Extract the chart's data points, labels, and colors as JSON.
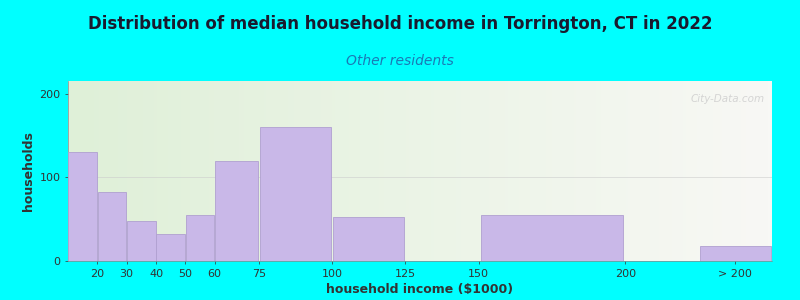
{
  "title": "Distribution of median household income in Torrington, CT in 2022",
  "subtitle": "Other residents",
  "xlabel": "household income ($1000)",
  "ylabel": "households",
  "background_color": "#00FFFF",
  "plot_bg_gradient_left": "#dff0d8",
  "plot_bg_gradient_right": "#f8f8f5",
  "bar_color": "#c9b8e8",
  "bar_edge_color": "#b0a0d0",
  "bar_centers": [
    15,
    25,
    35,
    45,
    55,
    67.5,
    87.5,
    112.5,
    137.5,
    175,
    237.5
  ],
  "bar_widths": [
    10,
    10,
    10,
    10,
    10,
    15,
    25,
    25,
    25,
    50,
    25
  ],
  "bar_heights": [
    130,
    82,
    48,
    32,
    55,
    120,
    160,
    52,
    0,
    55,
    18
  ],
  "ylim": [
    0,
    215
  ],
  "yticks": [
    0,
    100,
    200
  ],
  "xlim": [
    10,
    250
  ],
  "xtick_positions": [
    20,
    30,
    40,
    50,
    60,
    75,
    100,
    125,
    150,
    200,
    237.5
  ],
  "xtick_labels": [
    "20",
    "30",
    "40",
    "50",
    "60",
    "75",
    "100",
    "125",
    "150",
    "200",
    "> 200"
  ],
  "watermark": "City-Data.com",
  "title_fontsize": 12,
  "subtitle_fontsize": 10,
  "axis_label_fontsize": 9
}
